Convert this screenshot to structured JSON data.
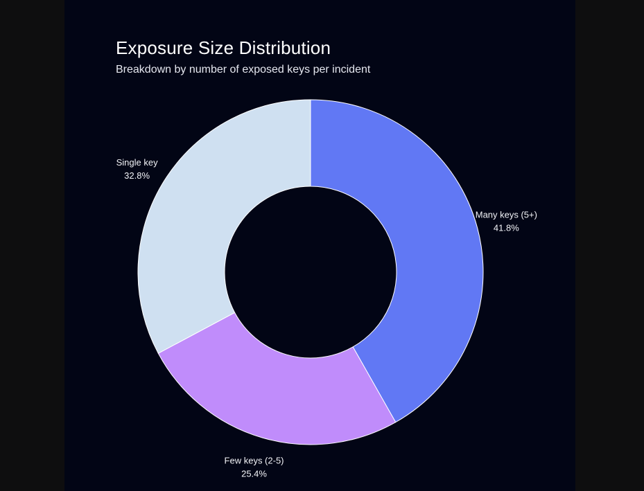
{
  "chart_data": {
    "type": "pie",
    "title": "Exposure Size Distribution",
    "subtitle": "Breakdown by number of exposed keys per incident",
    "donut": true,
    "slices": [
      {
        "label": "Many keys (5+)",
        "value": 41.8,
        "percent_label": "41.8%",
        "color": "#6178f4"
      },
      {
        "label": "Few keys (2-5)",
        "value": 25.4,
        "percent_label": "25.4%",
        "color": "#c08cfb"
      },
      {
        "label": "Single key",
        "value": 32.8,
        "percent_label": "32.8%",
        "color": "#cfe0f1"
      }
    ]
  }
}
